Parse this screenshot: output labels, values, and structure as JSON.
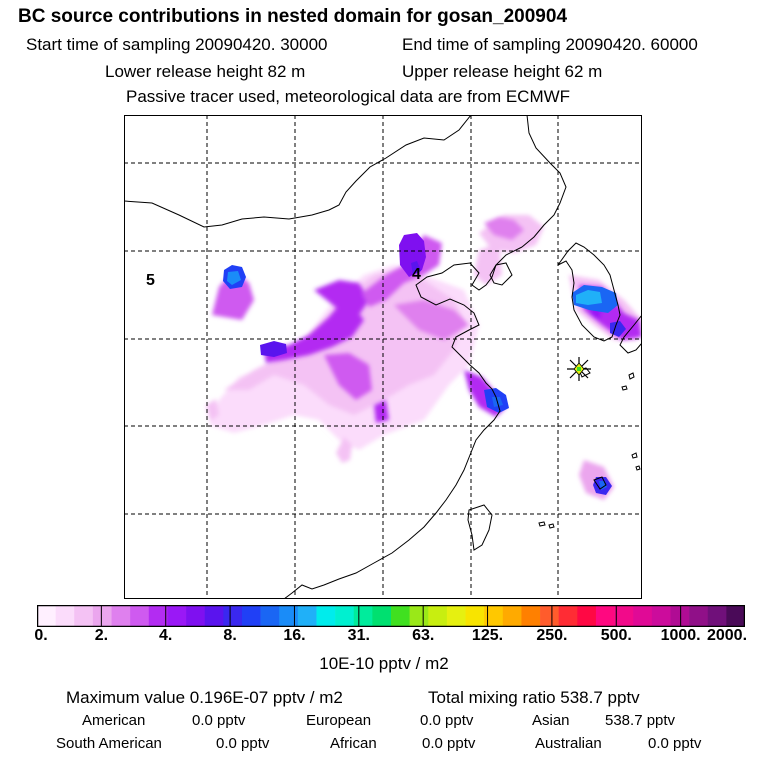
{
  "header": {
    "title": "BC  source contributions in nested domain for gosan_200904",
    "start_time": "Start time of sampling 20090420. 30000",
    "end_time": "End time of sampling 20090420. 60000",
    "lower_height": "Lower release height   82 m",
    "upper_height": "Upper release height   62 m",
    "tracer_note": "Passive tracer used, meteorological data are from ECMWF"
  },
  "map": {
    "region_labels": [
      "5",
      "4"
    ],
    "receptor": "gosan"
  },
  "colorbar": {
    "colors": [
      "#fff0ff",
      "#fbdcfb",
      "#f4c2f4",
      "#eba6ee",
      "#df80ee",
      "#cf5af0",
      "#b32cf2",
      "#9a18f6",
      "#7f10f0",
      "#5a14ee",
      "#3a28f0",
      "#2040f6",
      "#1a66f4",
      "#1a8cf8",
      "#20b0f8",
      "#00ecec",
      "#00f0d0",
      "#00ec9c",
      "#00e070",
      "#40e020",
      "#9ae818",
      "#c8ee10",
      "#e6f010",
      "#f8e400",
      "#ffc800",
      "#ffaa00",
      "#ff8000",
      "#ff5c2c",
      "#ff2c34",
      "#ff0844",
      "#ff0880",
      "#f20a8a",
      "#e00a96",
      "#cc0c9c",
      "#b00c94",
      "#901088",
      "#70107a",
      "#4a0a58"
    ],
    "tick_labels": [
      "0.",
      "2.",
      "4.",
      "8.",
      "16.",
      "31.",
      "63.",
      "125.",
      "250.",
      "500.",
      "1000.",
      "2000."
    ],
    "unit": "10E-10 pptv / m2"
  },
  "summary": {
    "max_value": "Maximum value  0.196E-07 pptv / m2",
    "total_mixing": "Total mixing ratio      538.7 pptv",
    "american_label": "American",
    "american_value": "0.0 pptv",
    "european_label": "European",
    "european_value": "0.0 pptv",
    "asian_label": "Asian",
    "asian_value": "538.7 pptv",
    "south_american_label": "South American",
    "south_american_value": "0.0 pptv",
    "african_label": "African",
    "african_value": "0.0 pptv",
    "australian_label": "Australian",
    "australian_value": "0.0 pptv"
  }
}
